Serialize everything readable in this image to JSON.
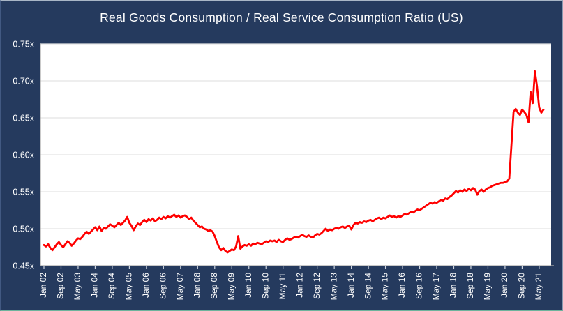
{
  "window": {
    "title": "Real Goods Consumption / Real Service Consumption Ratio (US)"
  },
  "chart_data": {
    "type": "line",
    "title": "Real Goods Consumption / Real Service Consumption Ratio (US)",
    "xlabel": "",
    "ylabel": "",
    "legend": "none",
    "grid": "horizontal",
    "ylim": [
      0.45,
      0.75
    ],
    "x_start": "Jan 2002",
    "x_frequency": "monthly",
    "y_ticks": [
      {
        "label": "0.45x",
        "value": 0.45
      },
      {
        "label": "0.50x",
        "value": 0.5
      },
      {
        "label": "0.55x",
        "value": 0.55
      },
      {
        "label": "0.60x",
        "value": 0.6
      },
      {
        "label": "0.65x",
        "value": 0.65
      },
      {
        "label": "0.70x",
        "value": 0.7
      },
      {
        "label": "0.75x",
        "value": 0.75
      }
    ],
    "x_ticks": [
      {
        "label": "Jan 02",
        "index": 0
      },
      {
        "label": "Sep 02",
        "index": 8
      },
      {
        "label": "May 03",
        "index": 16
      },
      {
        "label": "Jan 04",
        "index": 24
      },
      {
        "label": "Sep 04",
        "index": 32
      },
      {
        "label": "May 05",
        "index": 40
      },
      {
        "label": "Jan 06",
        "index": 48
      },
      {
        "label": "Sep 06",
        "index": 56
      },
      {
        "label": "May 07",
        "index": 64
      },
      {
        "label": "Jan 08",
        "index": 72
      },
      {
        "label": "Sep 08",
        "index": 80
      },
      {
        "label": "May 09",
        "index": 88
      },
      {
        "label": "Jan 10",
        "index": 96
      },
      {
        "label": "Sep 10",
        "index": 104
      },
      {
        "label": "May 11",
        "index": 112
      },
      {
        "label": "Jan 12",
        "index": 120
      },
      {
        "label": "Sep 12",
        "index": 128
      },
      {
        "label": "May 13",
        "index": 136
      },
      {
        "label": "Jan 14",
        "index": 144
      },
      {
        "label": "Sep 14",
        "index": 152
      },
      {
        "label": "May 15",
        "index": 160
      },
      {
        "label": "Jan 16",
        "index": 168
      },
      {
        "label": "Sep 16",
        "index": 176
      },
      {
        "label": "May 17",
        "index": 184
      },
      {
        "label": "Jan 18",
        "index": 192
      },
      {
        "label": "Sep 18",
        "index": 200
      },
      {
        "label": "May 19",
        "index": 208
      },
      {
        "label": "Jan 20",
        "index": 216
      },
      {
        "label": "Sep 20",
        "index": 224
      },
      {
        "label": "May 21",
        "index": 232
      }
    ],
    "values": [
      0.478,
      0.476,
      0.479,
      0.474,
      0.471,
      0.475,
      0.479,
      0.482,
      0.478,
      0.475,
      0.479,
      0.483,
      0.481,
      0.477,
      0.48,
      0.484,
      0.487,
      0.486,
      0.489,
      0.493,
      0.496,
      0.493,
      0.496,
      0.499,
      0.502,
      0.498,
      0.503,
      0.497,
      0.501,
      0.5,
      0.503,
      0.506,
      0.504,
      0.502,
      0.505,
      0.508,
      0.505,
      0.508,
      0.511,
      0.516,
      0.508,
      0.504,
      0.498,
      0.503,
      0.507,
      0.505,
      0.509,
      0.512,
      0.509,
      0.513,
      0.511,
      0.514,
      0.51,
      0.512,
      0.515,
      0.513,
      0.516,
      0.514,
      0.517,
      0.515,
      0.517,
      0.519,
      0.516,
      0.518,
      0.515,
      0.517,
      0.518,
      0.516,
      0.513,
      0.515,
      0.511,
      0.508,
      0.505,
      0.502,
      0.503,
      0.5,
      0.499,
      0.497,
      0.498,
      0.496,
      0.49,
      0.482,
      0.475,
      0.471,
      0.474,
      0.47,
      0.468,
      0.47,
      0.472,
      0.471,
      0.476,
      0.49,
      0.473,
      0.476,
      0.478,
      0.477,
      0.479,
      0.477,
      0.48,
      0.479,
      0.481,
      0.48,
      0.479,
      0.481,
      0.483,
      0.482,
      0.484,
      0.483,
      0.484,
      0.482,
      0.485,
      0.483,
      0.482,
      0.485,
      0.487,
      0.485,
      0.486,
      0.488,
      0.489,
      0.488,
      0.49,
      0.492,
      0.49,
      0.489,
      0.491,
      0.489,
      0.488,
      0.491,
      0.493,
      0.492,
      0.494,
      0.497,
      0.5,
      0.497,
      0.499,
      0.498,
      0.5,
      0.501,
      0.5,
      0.502,
      0.503,
      0.501,
      0.503,
      0.504,
      0.499,
      0.505,
      0.508,
      0.507,
      0.509,
      0.508,
      0.51,
      0.509,
      0.511,
      0.512,
      0.51,
      0.512,
      0.514,
      0.515,
      0.513,
      0.515,
      0.514,
      0.516,
      0.518,
      0.516,
      0.517,
      0.515,
      0.517,
      0.516,
      0.518,
      0.52,
      0.519,
      0.521,
      0.523,
      0.522,
      0.524,
      0.526,
      0.525,
      0.527,
      0.529,
      0.531,
      0.533,
      0.535,
      0.534,
      0.536,
      0.535,
      0.537,
      0.539,
      0.538,
      0.541,
      0.54,
      0.543,
      0.545,
      0.548,
      0.551,
      0.549,
      0.552,
      0.55,
      0.553,
      0.551,
      0.554,
      0.552,
      0.555,
      0.553,
      0.546,
      0.551,
      0.553,
      0.55,
      0.553,
      0.555,
      0.556,
      0.558,
      0.559,
      0.56,
      0.561,
      0.562,
      0.562,
      0.563,
      0.564,
      0.568,
      0.613,
      0.658,
      0.662,
      0.657,
      0.654,
      0.661,
      0.658,
      0.654,
      0.644,
      0.685,
      0.67,
      0.713,
      0.692,
      0.664,
      0.657,
      0.661
    ],
    "colors": {
      "line": "#ff0000",
      "background": "#253a5e",
      "plot_background": "#ffffff",
      "gridline": "#e3e3e3",
      "axis": "#a6a6a6",
      "tick": "#cdd5e0",
      "text": "#ffffff",
      "bottom_border": "#6db39c"
    }
  }
}
